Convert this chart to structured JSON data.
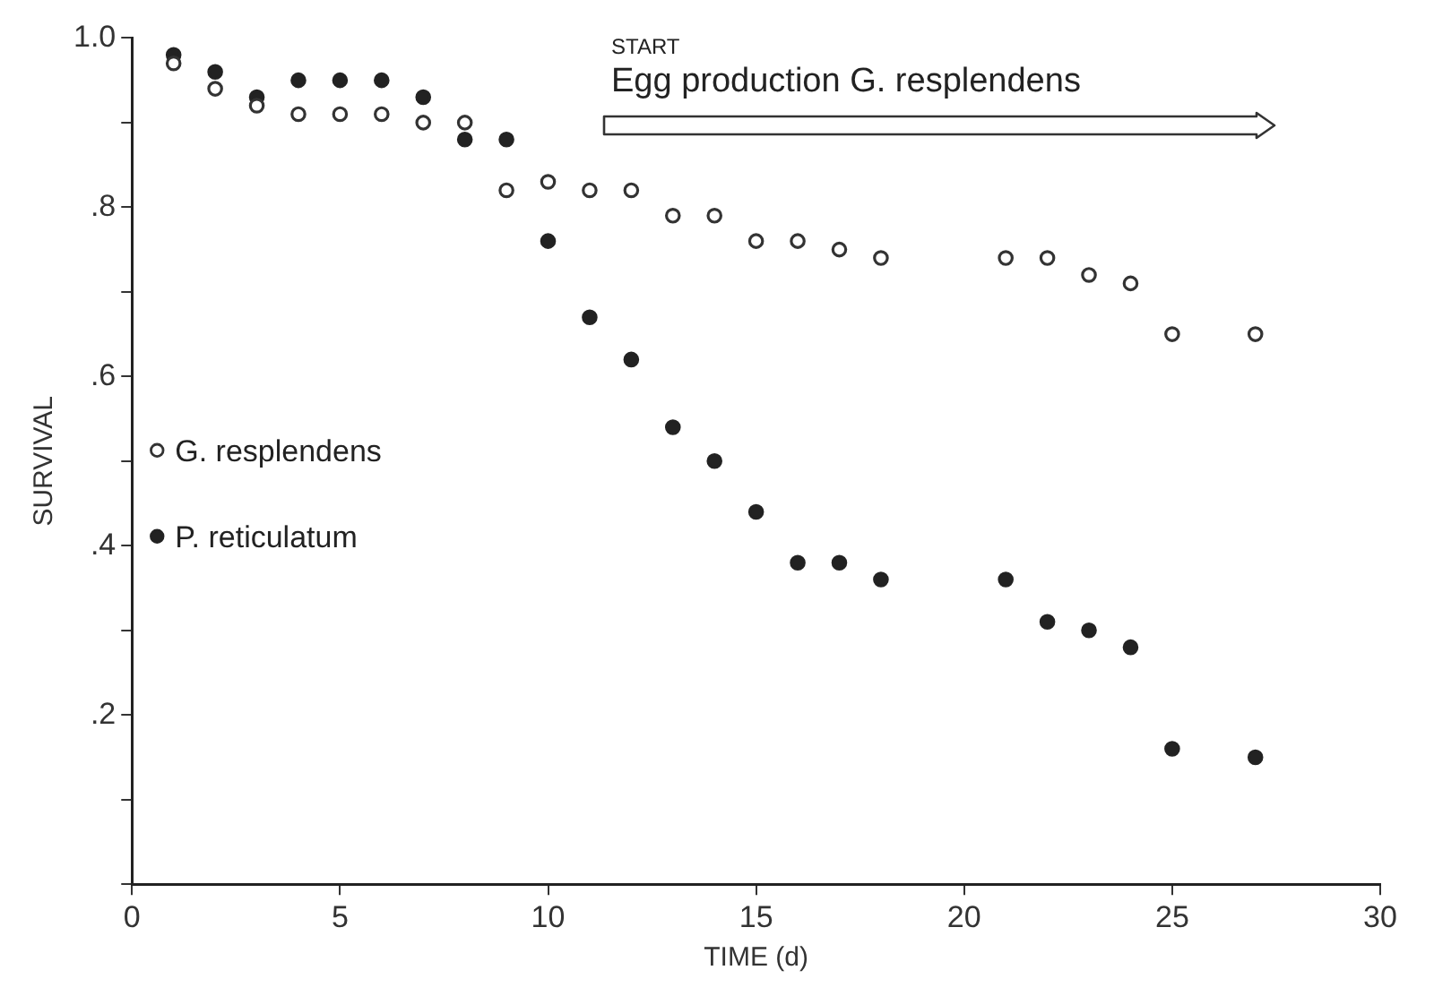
{
  "chart_data": {
    "type": "scatter",
    "xlabel": "TIME (d)",
    "ylabel": "SURVIVAL",
    "x": [
      1,
      2,
      3,
      4,
      5,
      6,
      7,
      8,
      9,
      10,
      11,
      12,
      13,
      14,
      15,
      16,
      17,
      18,
      21,
      22,
      23,
      24,
      25,
      27
    ],
    "series": [
      {
        "name": "G. resplendens",
        "color": "#333333",
        "values": [
          0.97,
          0.94,
          0.92,
          0.91,
          0.91,
          0.91,
          0.9,
          0.9,
          0.82,
          0.83,
          0.82,
          0.82,
          0.79,
          0.79,
          0.76,
          0.76,
          0.75,
          0.74,
          0.74,
          0.74,
          0.72,
          0.71,
          0.65,
          0.65
        ]
      },
      {
        "name": "P. reticulatum",
        "color": "#222222",
        "values": [
          0.98,
          0.96,
          0.93,
          0.95,
          0.95,
          0.95,
          0.93,
          0.88,
          0.88,
          0.76,
          0.67,
          0.62,
          0.54,
          0.5,
          0.44,
          0.38,
          0.38,
          0.36,
          0.36,
          0.31,
          0.3,
          0.28,
          0.16,
          0.15
        ]
      }
    ],
    "xlim": [
      0,
      30
    ],
    "xticks": [
      0,
      5,
      10,
      15,
      20,
      25,
      30
    ],
    "ylim": [
      0,
      1.0
    ],
    "yticks": [
      {
        "value": 0,
        "label": null
      },
      {
        "value": 0.1,
        "label": null
      },
      {
        "value": 0.2,
        "label": ".2"
      },
      {
        "value": 0.3,
        "label": null
      },
      {
        "value": 0.4,
        "label": ".4"
      },
      {
        "value": 0.5,
        "label": null
      },
      {
        "value": 0.6,
        "label": ".6"
      },
      {
        "value": 0.7,
        "label": null
      },
      {
        "value": 0.8,
        "label": ".8"
      },
      {
        "value": 0.9,
        "label": null
      },
      {
        "value": 1.0,
        "label": "1.0"
      }
    ],
    "annotations": [
      "START",
      "Egg production G. resplendens"
    ],
    "marker": "circle",
    "grid": false,
    "legend": "left"
  }
}
